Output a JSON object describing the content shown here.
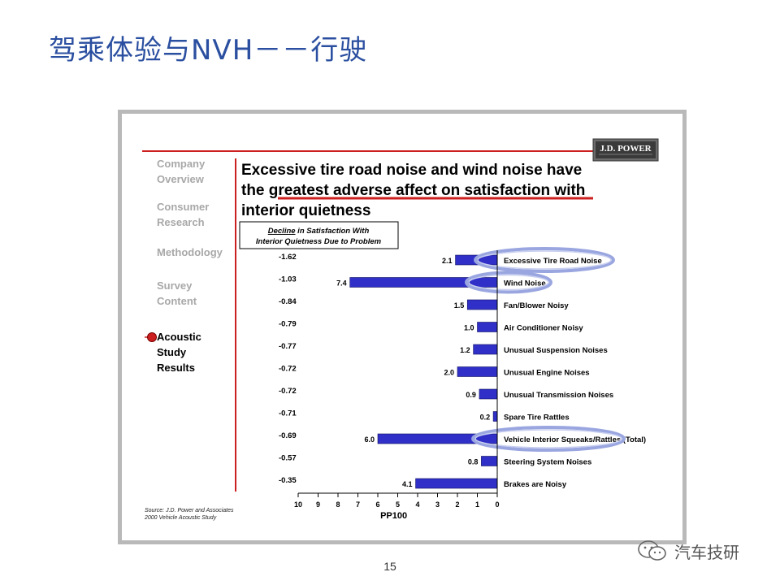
{
  "slide": {
    "title": "驾乘体验与NVH－－行驶",
    "page_number": "15",
    "watermark": "汽车技研"
  },
  "sidebar": {
    "items": [
      {
        "lines": [
          "Company",
          "Overview"
        ],
        "active": false
      },
      {
        "lines": [
          "Consumer",
          "Research"
        ],
        "active": false
      },
      {
        "lines": [
          "Methodology"
        ],
        "active": false
      },
      {
        "lines": [
          "Survey",
          "Content"
        ],
        "active": false
      },
      {
        "lines": [
          "Acoustic",
          "Study",
          "Results"
        ],
        "active": true
      }
    ]
  },
  "logo": {
    "text": "J.D. POWER"
  },
  "headline": {
    "lines": [
      "Excessive tire road noise and wind noise have",
      "the greatest adverse affect on satisfaction with",
      "interior quietness"
    ]
  },
  "decline_box": {
    "line1_underlined": "Decline",
    "line1_rest": " in Satisfaction With",
    "line2": "Interior Quietness Due to Problem"
  },
  "source": {
    "line1": "Source:  J.D. Power and Associates",
    "line2": "2000 Vehicle Acoustic Study"
  },
  "colors": {
    "bar": "#3030c8",
    "accent_red": "#cc1f1f",
    "sidebar_inactive": "#a8a8a8",
    "title_blue": "#2b4fa0",
    "highlight_ellipse": "#9aa6e0"
  },
  "chart_data": {
    "type": "bar",
    "orientation": "horizontal",
    "xlabel": "PP100",
    "x_ticks": [
      "10",
      "9",
      "8",
      "7",
      "6",
      "5",
      "4",
      "3",
      "2",
      "1",
      "0"
    ],
    "xlim": [
      10,
      0
    ],
    "categories": [
      "Excessive Tire Road Noise",
      "Wind Noise",
      "Fan/Blower Noisy",
      "Air Conditioner Noisy",
      "Unusual Suspension Noises",
      "Unusual Engine Noises",
      "Unusual Transmission Noises",
      "Spare Tire Rattles",
      "Vehicle Interior Squeaks/Rattles (Total)",
      "Steering System Noises",
      "Brakes are Noisy"
    ],
    "values": [
      2.1,
      7.4,
      1.5,
      1.0,
      1.2,
      2.0,
      0.9,
      0.2,
      6.0,
      0.8,
      4.1
    ],
    "value_labels": [
      "2.1",
      "7.4",
      "1.5",
      "1.0",
      "1.2",
      "2.0",
      "0.9",
      "0.2",
      "6.0",
      "0.8",
      "4.1"
    ],
    "decline_labels": [
      "-1.62",
      "-1.03",
      "-0.84",
      "-0.79",
      "-0.77",
      "-0.72",
      "-0.72",
      "-0.71",
      "-0.69",
      "-0.57",
      "-0.35"
    ],
    "highlighted": [
      0,
      1,
      8
    ]
  }
}
